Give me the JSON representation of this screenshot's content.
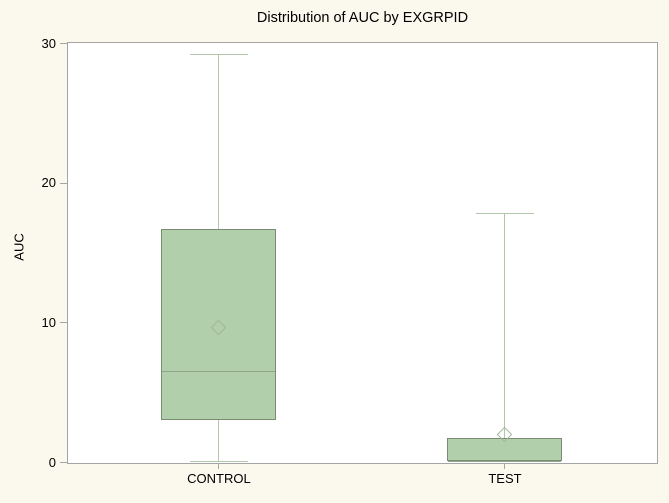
{
  "chart_data": {
    "type": "boxplot",
    "title": "Distribution of AUC by EXGRPID",
    "xlabel": "",
    "ylabel": "AUC",
    "categories": [
      "CONTROL",
      "TEST"
    ],
    "ylim": [
      0,
      30
    ],
    "yticks": [
      0,
      10,
      20,
      30
    ],
    "grid": false,
    "legend_position": "none",
    "series": [
      {
        "category": "CONTROL",
        "whisker_low": 0.1,
        "q1": 3.0,
        "median": 6.5,
        "q3": 16.7,
        "whisker_high": 29.2,
        "mean": 9.6
      },
      {
        "category": "TEST",
        "whisker_low": 0.1,
        "q1": 0.1,
        "median": 0.1,
        "q3": 1.7,
        "whisker_high": 17.8,
        "mean": 2.0
      }
    ]
  },
  "colors": {
    "background": "#FBF8EE",
    "plot_background": "#FFFFFF",
    "frame": "#A5A5A5",
    "tick": "#A5A5A5",
    "box_fill": "#B0CFAA",
    "box_border": "#7A8B74",
    "median_line": "#8FA788",
    "whisker": "#B1C6AB",
    "mean_marker": "#A0B79A",
    "text": "#000000"
  }
}
